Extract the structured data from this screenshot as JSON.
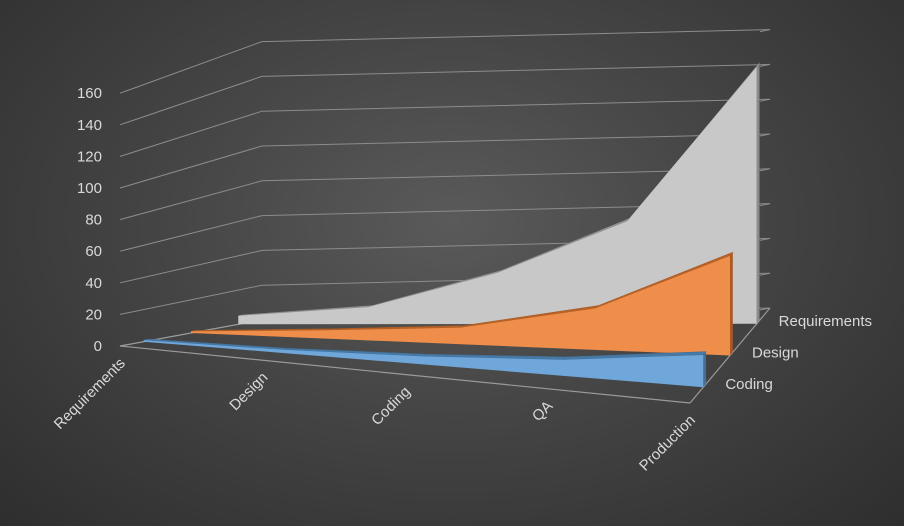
{
  "chart_data": {
    "type": "area",
    "view": "3d",
    "categories": [
      "Requirements",
      "Design",
      "Coding",
      "QA",
      "Production"
    ],
    "series": [
      {
        "name": "Coding",
        "values": [
          1,
          2,
          5,
          10,
          20
        ],
        "color": "#5b9bd5"
      },
      {
        "name": "Design",
        "values": [
          1,
          5,
          10,
          25,
          60
        ],
        "color": "#ed7d31"
      },
      {
        "name": "Requirements",
        "values": [
          5,
          10,
          30,
          60,
          150
        ],
        "color": "#c0c0c0"
      }
    ],
    "yticks": [
      0,
      20,
      40,
      60,
      80,
      100,
      120,
      140,
      160
    ],
    "ylim": [
      0,
      160
    ],
    "grid": true,
    "legend": "none",
    "background": "#3a3a3a"
  }
}
